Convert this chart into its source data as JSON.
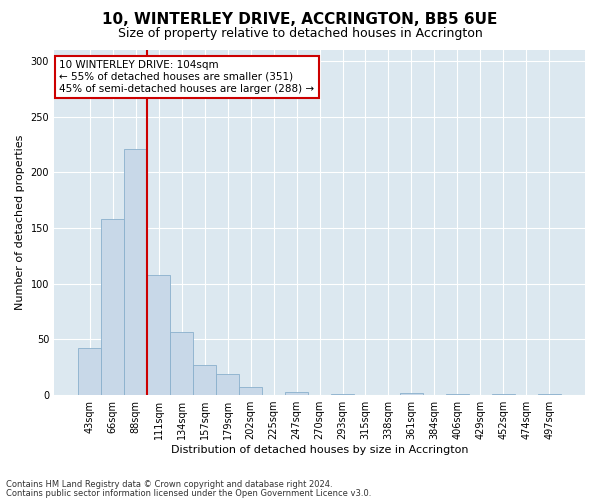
{
  "title": "10, WINTERLEY DRIVE, ACCRINGTON, BB5 6UE",
  "subtitle": "Size of property relative to detached houses in Accrington",
  "xlabel": "Distribution of detached houses by size in Accrington",
  "ylabel": "Number of detached properties",
  "bar_labels": [
    "43sqm",
    "66sqm",
    "88sqm",
    "111sqm",
    "134sqm",
    "157sqm",
    "179sqm",
    "202sqm",
    "225sqm",
    "247sqm",
    "270sqm",
    "293sqm",
    "315sqm",
    "338sqm",
    "361sqm",
    "384sqm",
    "406sqm",
    "429sqm",
    "452sqm",
    "474sqm",
    "497sqm"
  ],
  "bar_values": [
    42,
    158,
    221,
    108,
    57,
    27,
    19,
    7,
    0,
    3,
    0,
    1,
    0,
    0,
    2,
    0,
    1,
    0,
    1,
    0,
    1
  ],
  "bar_color": "#c8d8e8",
  "bar_edgecolor": "#8ab0cc",
  "vline_x_index": 3,
  "vline_color": "#cc0000",
  "annotation_text": "10 WINTERLEY DRIVE: 104sqm\n← 55% of detached houses are smaller (351)\n45% of semi-detached houses are larger (288) →",
  "annotation_box_facecolor": "#ffffff",
  "annotation_box_edgecolor": "#cc0000",
  "ylim": [
    0,
    310
  ],
  "yticks": [
    0,
    50,
    100,
    150,
    200,
    250,
    300
  ],
  "plot_bg_color": "#dce8f0",
  "fig_bg_color": "#ffffff",
  "title_fontsize": 11,
  "subtitle_fontsize": 9,
  "ylabel_fontsize": 8,
  "xlabel_fontsize": 8,
  "tick_fontsize": 7,
  "footer1": "Contains HM Land Registry data © Crown copyright and database right 2024.",
  "footer2": "Contains public sector information licensed under the Open Government Licence v3.0."
}
